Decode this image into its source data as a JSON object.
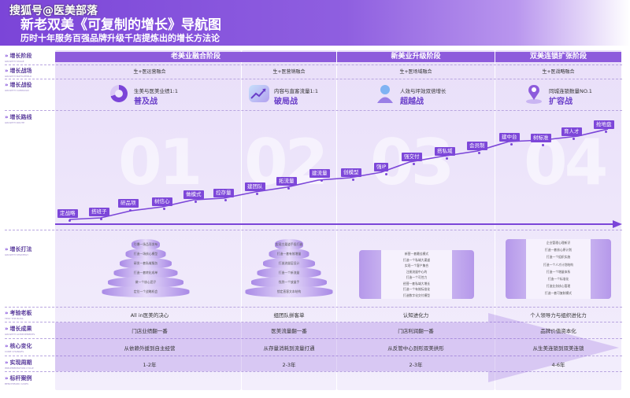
{
  "header": {
    "title": "新老双美《可复制的增长》导航图",
    "subtitle": "历时十年服务百强品牌升级千店提炼出的增长方法论",
    "watermark": "搜狐号@医美部落"
  },
  "row_labels": [
    {
      "cn": "增长阶段",
      "en": "GROWTH STAGE"
    },
    {
      "cn": "增长战场",
      "en": "GROWTH BATTLEFIELD"
    },
    {
      "cn": "增长战役",
      "en": "GROWTH CAMPAIGN"
    },
    {
      "cn": "增长路线",
      "en": "GROWTH ROUTE"
    },
    {
      "cn": "增长打法",
      "en": "GROWTH STRATEGY"
    },
    {
      "cn": "考验老板",
      "en": "TEST THE BOSS"
    },
    {
      "cn": "增长成果",
      "en": "GROWTH ACHIEVEMENTS"
    },
    {
      "cn": "核心变化",
      "en": "CORE CHANGES"
    },
    {
      "cn": "实现周期",
      "en": "IMPLEMENTATION CYCLE"
    },
    {
      "cn": "标杆案例",
      "en": "BENCHMARK CASES"
    }
  ],
  "phases": [
    "老美业融合阶段",
    "新美业升级阶段",
    "双美连锁扩张阶段"
  ],
  "battlefields": [
    "生+医运营融合",
    "生+医营销融合",
    "生+医场域融合",
    "生+医战略融合"
  ],
  "campaigns": [
    {
      "line": "生美与医美业绩1:1",
      "name": "普及战"
    },
    {
      "line": "内容与直客流量1:1",
      "name": "破局战"
    },
    {
      "line": "人效与坪效双倍增长",
      "name": "超越战"
    },
    {
      "line": "同城连锁数量NO.1",
      "name": "扩容战"
    }
  ],
  "big_numbers": [
    "01",
    "02",
    "03",
    "04"
  ],
  "steps": [
    "定战略",
    "搭班子",
    "研品项",
    "树信心",
    "做模式",
    "控存量",
    "建团队",
    "拓流量",
    "建流量",
    "创模型",
    "强IP",
    "强交付",
    "搭私域",
    "会员制",
    "建中台",
    "树标准",
    "育人才",
    "抢地盘"
  ],
  "pyramids": [
    [
      "引爆一场品项发布",
      "打造一场核心模型",
      "研发一套私域服务",
      "打造一套转化成单",
      "做一个核心团子",
      "定位一个战略机会"
    ],
    [
      "实现主渠道手段打造",
      "打造一套有效增量",
      "打造流量层设计",
      "打造一个新流量",
      "找到一个放量手",
      "锁定直客文本结构"
    ]
  ],
  "towers": [
    [
      "新营一套最佳模式",
      "打造一个私域大渠道",
      "实现一个客户集合",
      "注册流量中心的",
      "打造一个可控力",
      "经营一套私域大增长",
      "打造一个有效标准化",
      "打造数字化交付模型"
    ],
    [
      "企业管理心理新识",
      "打造一套核心原计划",
      "打造一个组织实施",
      "打造一个人才计划结构",
      "打造一个增量体系",
      "打造一个标准化",
      "打造业务核心管理",
      "打造一套可复制模式"
    ]
  ],
  "bottom": {
    "test_boss": [
      "All in医美的决心",
      "组团队拼客单",
      "认知进化力",
      "个人领导力与组织进化力"
    ],
    "achievements": [
      "门店业绩翻一番",
      "医美流量翻一番",
      "门店利润翻一番",
      "品牌价值资本化"
    ],
    "core_changes": [
      "从依赖外援到自主经营",
      "从存量消耗到流量打通",
      "从反管中心到形双美拱形",
      "从生美连锁到双美连锁"
    ],
    "cycles": [
      "1-2年",
      "2-3年",
      "2-3年",
      "4-6年"
    ]
  },
  "colors": {
    "purple": "#7b45d8",
    "deep": "#6a3fc9",
    "light": "#efe8fb"
  }
}
